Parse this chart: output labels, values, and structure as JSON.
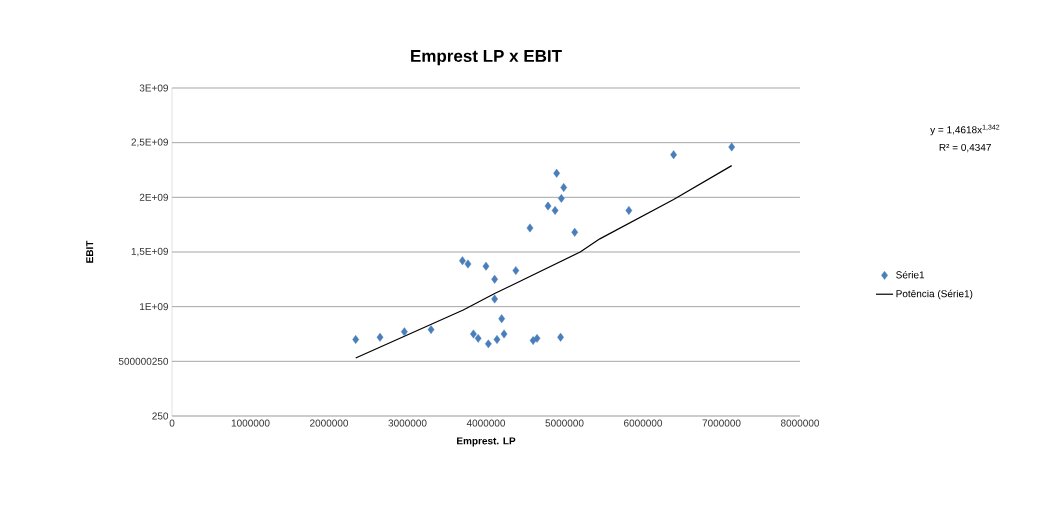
{
  "chart_data": {
    "type": "scatter",
    "title": "Emprest LP x EBIT",
    "xlabel": "Emprest. LP",
    "ylabel": "EBIT",
    "xlim": [
      0,
      8000000
    ],
    "xticks": [
      0,
      1000000,
      2000000,
      3000000,
      4000000,
      5000000,
      6000000,
      7000000,
      8000000
    ],
    "ylim": [
      250,
      3000000250
    ],
    "yticks": [
      250,
      500000250,
      {
        "value": 1000000250,
        "label": "1E+09"
      },
      {
        "value": 1500000250,
        "label": "1,5E+09"
      },
      {
        "value": 2000000250,
        "label": "2E+09"
      },
      {
        "value": 2500000250,
        "label": "2,5E+09"
      },
      {
        "value": 3000000250,
        "label": "3E+09"
      }
    ],
    "grid": "y",
    "legend": "right",
    "annotations": [
      "y = 1,4618x$^{1,342}$",
      "R² = 0,4347"
    ],
    "series": [
      {
        "name": "Série1",
        "type": "scatter",
        "marker": "diamond",
        "color": "#4a7ebb",
        "x": [
          2340000,
          2650000,
          2960000,
          3300000,
          3700000,
          3770000,
          4000000,
          4110000,
          4110000,
          4200000,
          3840000,
          3900000,
          4030000,
          4140000,
          4230000,
          4380000,
          4560000,
          4600000,
          4650000,
          4790000,
          4880000,
          4900000,
          4990000,
          4960000,
          4950000,
          5130000,
          5820000,
          6390000,
          7130000
        ],
        "values": [
          700000000,
          720000000,
          770000000,
          790000000,
          1420000000,
          1390000000,
          1370000000,
          1250000000,
          1070000000,
          890000000,
          750000000,
          710000000,
          660000000,
          700000000,
          750000000,
          1330000000,
          1720000000,
          690000000,
          710000000,
          1920000000,
          1880000000,
          2220000000,
          2090000000,
          1990000000,
          720000000,
          1680000000,
          1880000000,
          2390000000,
          2460000000
        ]
      },
      {
        "name": "Potência (Série1)",
        "type": "line",
        "marker": "none",
        "line_style": "solid",
        "color": "#000000",
        "x": [
          2340000,
          3710000,
          4110000,
          5200000,
          5450000,
          6390000,
          7130000
        ],
        "values": [
          530000000,
          970000000,
          1120000000,
          1500000000,
          1620000000,
          1980000000,
          2290000000
        ]
      }
    ]
  }
}
